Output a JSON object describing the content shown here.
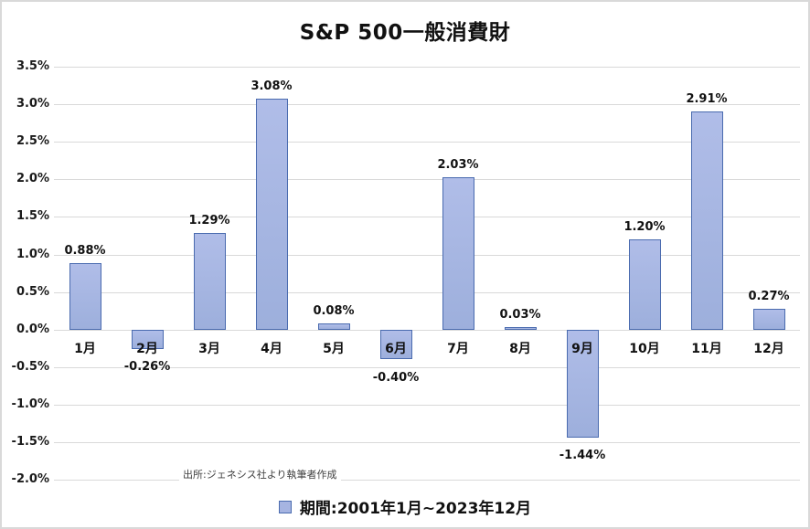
{
  "chart_data": {
    "type": "bar",
    "title": "S&P 500一般消費財",
    "categories": [
      "1月",
      "2月",
      "3月",
      "4月",
      "5月",
      "6月",
      "7月",
      "8月",
      "9月",
      "10月",
      "11月",
      "12月"
    ],
    "values": [
      0.88,
      -0.26,
      1.29,
      3.08,
      0.08,
      -0.4,
      2.03,
      0.03,
      -1.44,
      1.2,
      2.91,
      0.27
    ],
    "value_labels": [
      "0.88%",
      "-0.26%",
      "1.29%",
      "3.08%",
      "0.08%",
      "-0.40%",
      "2.03%",
      "0.03%",
      "-1.44%",
      "1.20%",
      "2.91%",
      "0.27%"
    ],
    "xlabel": "",
    "ylabel": "",
    "ylim": [
      -2.0,
      3.5
    ],
    "ytick_step": 0.5,
    "ytick_labels": [
      "3.5%",
      "3.0%",
      "2.5%",
      "2.0%",
      "1.5%",
      "1.0%",
      "0.5%",
      "0.0%",
      "-0.5%",
      "-1.0%",
      "-1.5%",
      "-2.0%"
    ],
    "grid": true,
    "legend": {
      "position": "bottom",
      "label": "期間:2001年1月~2023年12月"
    },
    "source_note": "出所:ジェネシス社より執筆者作成",
    "colors": {
      "bar_fill": "#A6B4E1",
      "bar_border": "#4A6BAF",
      "gridline": "#D9D9D9",
      "text": "#111111",
      "source_text": "#404040",
      "frame_border": "#D9D9D9"
    }
  }
}
